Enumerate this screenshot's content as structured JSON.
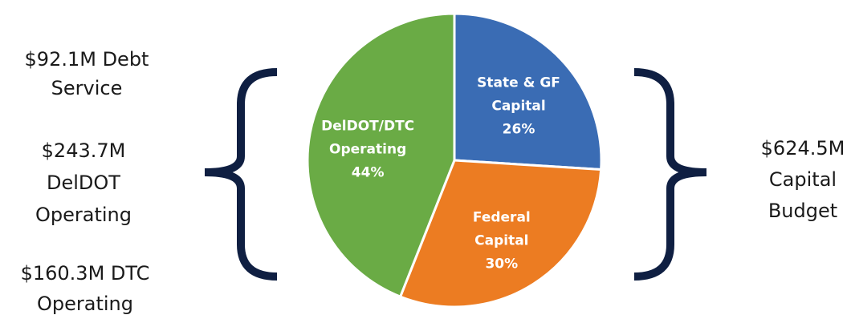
{
  "chart_data": {
    "type": "pie",
    "categories": [
      "State & GF Capital",
      "Federal Capital",
      "DelDOT/DTC Operating"
    ],
    "values": [
      26,
      30,
      44
    ],
    "value_labels": [
      "26%",
      "30%",
      "44%"
    ],
    "colors": [
      "#3a6cb4",
      "#ec7c22",
      "#6aab45"
    ],
    "annotations": [
      "$92.1M  Debt Service",
      "$243.7M DelDOT Operating",
      "$160.3M DTC Operating",
      "$624.5M Capital Budget"
    ]
  }
}
